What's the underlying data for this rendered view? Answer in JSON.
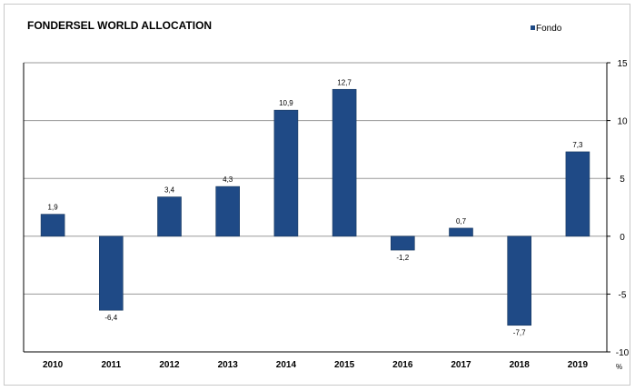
{
  "chart_data": {
    "type": "bar",
    "title": "FONDERSEL WORLD ALLOCATION",
    "categories": [
      "2010",
      "2011",
      "2012",
      "2013",
      "2014",
      "2015",
      "2016",
      "2017",
      "2018",
      "2019"
    ],
    "series": [
      {
        "name": "Fondo",
        "color": "#1f4a86",
        "values": [
          1.9,
          -6.4,
          3.4,
          4.3,
          10.9,
          12.7,
          -1.2,
          0.7,
          -7.7,
          7.3
        ],
        "labels": [
          "1,9",
          "-6,4",
          "3,4",
          "4,3",
          "10,9",
          "12,7",
          "-1,2",
          "0,7",
          "-7,7",
          "7,3"
        ]
      }
    ],
    "ylim": [
      -10,
      15
    ],
    "yticks": [
      -10,
      -5,
      0,
      5,
      10,
      15
    ],
    "ytick_labels": [
      "-10",
      "-5",
      "0",
      "5",
      "10",
      "15"
    ],
    "y_axis_position": "right",
    "y_unit": "%",
    "grid": true,
    "legend_position": "top-right"
  }
}
